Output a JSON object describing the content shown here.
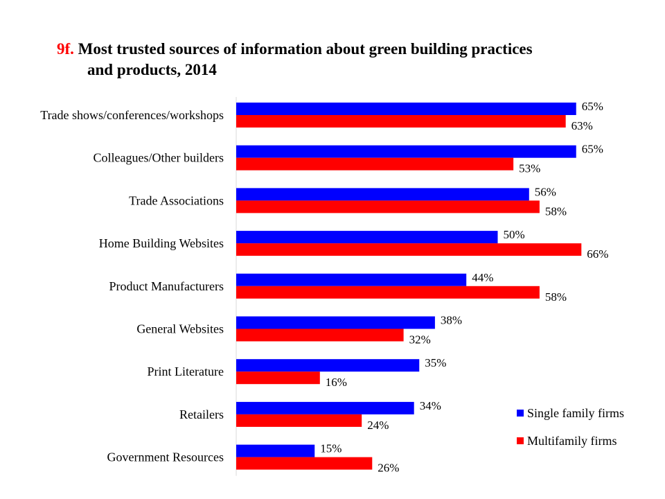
{
  "chart_data": {
    "type": "bar",
    "orientation": "horizontal",
    "title_number": "9f.",
    "title_line1": "Most trusted sources of information about green building practices",
    "title_line2": "and products, 2014",
    "xlim": [
      0,
      70
    ],
    "grid": false,
    "legend_position": "bottom-right",
    "categories": [
      "Trade shows/conferences/workshops",
      "Colleagues/Other builders",
      "Trade Associations",
      "Home Building Websites",
      "Product Manufacturers",
      "General Websites",
      "Print Literature",
      "Retailers",
      "Government Resources"
    ],
    "series": [
      {
        "name": "Single family firms",
        "color": "#0000ff",
        "values": [
          65,
          65,
          56,
          50,
          44,
          38,
          35,
          34,
          15
        ],
        "labels": [
          "65%",
          "65%",
          "56%",
          "50%",
          "44%",
          "38%",
          "35%",
          "34%",
          "15%"
        ]
      },
      {
        "name": "Multifamily firms",
        "color": "#ff0000",
        "values": [
          63,
          53,
          58,
          66,
          58,
          32,
          16,
          24,
          26
        ],
        "labels": [
          "63%",
          "53%",
          "58%",
          "66%",
          "58%",
          "32%",
          "16%",
          "24%",
          "26%"
        ]
      }
    ]
  }
}
